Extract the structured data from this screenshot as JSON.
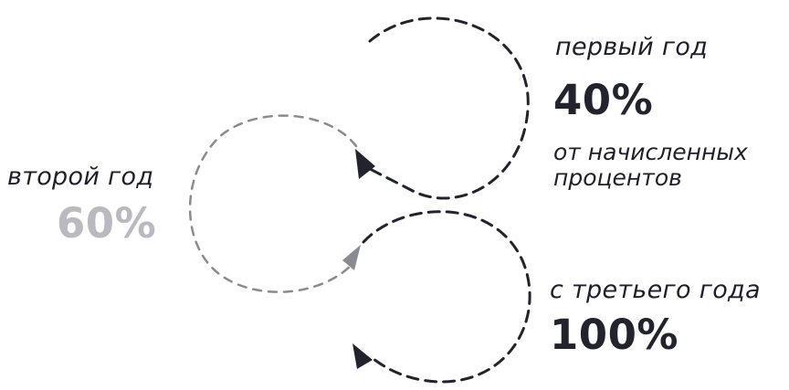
{
  "steps": [
    {
      "period": "первый год",
      "value": "40%",
      "note_line1": "от начисленных",
      "note_line2": "процентов",
      "color": "#23232d"
    },
    {
      "period": "второй год",
      "value": "60%",
      "color": "#b9b9bf"
    },
    {
      "period": "с третьего года",
      "value": "100%",
      "color": "#23232d"
    }
  ],
  "colors": {
    "text": "#1f1f2b",
    "dark_path": "#23232d",
    "light_path": "#8a8a92"
  }
}
